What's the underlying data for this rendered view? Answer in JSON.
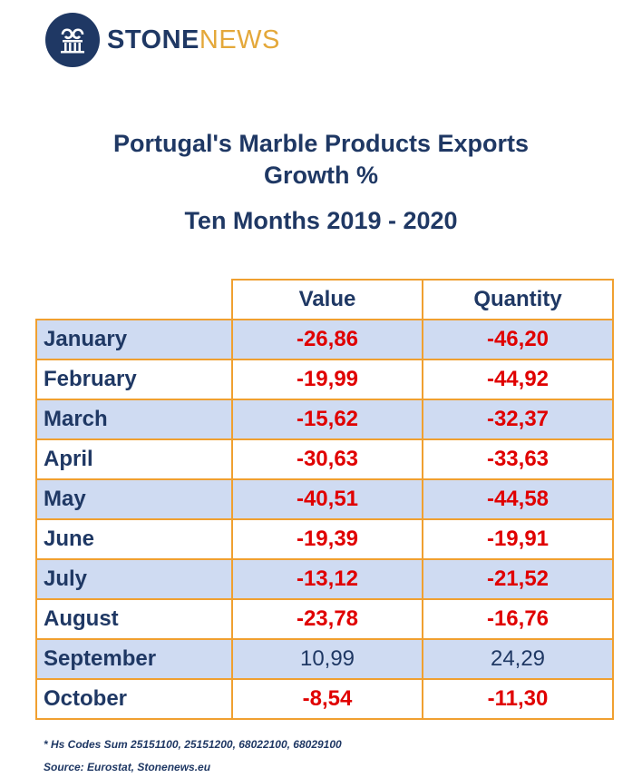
{
  "logo": {
    "brand_part1": "STONE",
    "brand_part2": "NEWS",
    "icon": "column-pillar-icon"
  },
  "title": {
    "line1": "Portugal's Marble Products Exports",
    "line2": "Growth %",
    "line3": "Ten Months 2019 - 2020"
  },
  "colors": {
    "navy": "#1f3864",
    "negative": "#e00000",
    "border": "#f0a030",
    "band": "#cfdbf2",
    "accent": "#e4a83a"
  },
  "chart_data": {
    "type": "table",
    "columns": [
      "Value",
      "Quantity"
    ],
    "rows": [
      {
        "month": "January",
        "value": "-26,86",
        "quantity": "-46,20"
      },
      {
        "month": "February",
        "value": "-19,99",
        "quantity": "-44,92"
      },
      {
        "month": "March",
        "value": "-15,62",
        "quantity": "-32,37"
      },
      {
        "month": "April",
        "value": "-30,63",
        "quantity": "-33,63"
      },
      {
        "month": "May",
        "value": "-40,51",
        "quantity": "-44,58"
      },
      {
        "month": "June",
        "value": "-19,39",
        "quantity": "-19,91"
      },
      {
        "month": "July",
        "value": "-13,12",
        "quantity": "-21,52"
      },
      {
        "month": "August",
        "value": "-23,78",
        "quantity": "-16,76"
      },
      {
        "month": "September",
        "value": "10,99",
        "quantity": "24,29"
      },
      {
        "month": "October",
        "value": "-8,54",
        "quantity": "-11,30"
      }
    ]
  },
  "footnotes": {
    "hs_codes": "* Hs Codes Sum 25151100, 25151200, 68022100, 68029100",
    "source": "Source: Eurostat, Stonenews.eu"
  }
}
